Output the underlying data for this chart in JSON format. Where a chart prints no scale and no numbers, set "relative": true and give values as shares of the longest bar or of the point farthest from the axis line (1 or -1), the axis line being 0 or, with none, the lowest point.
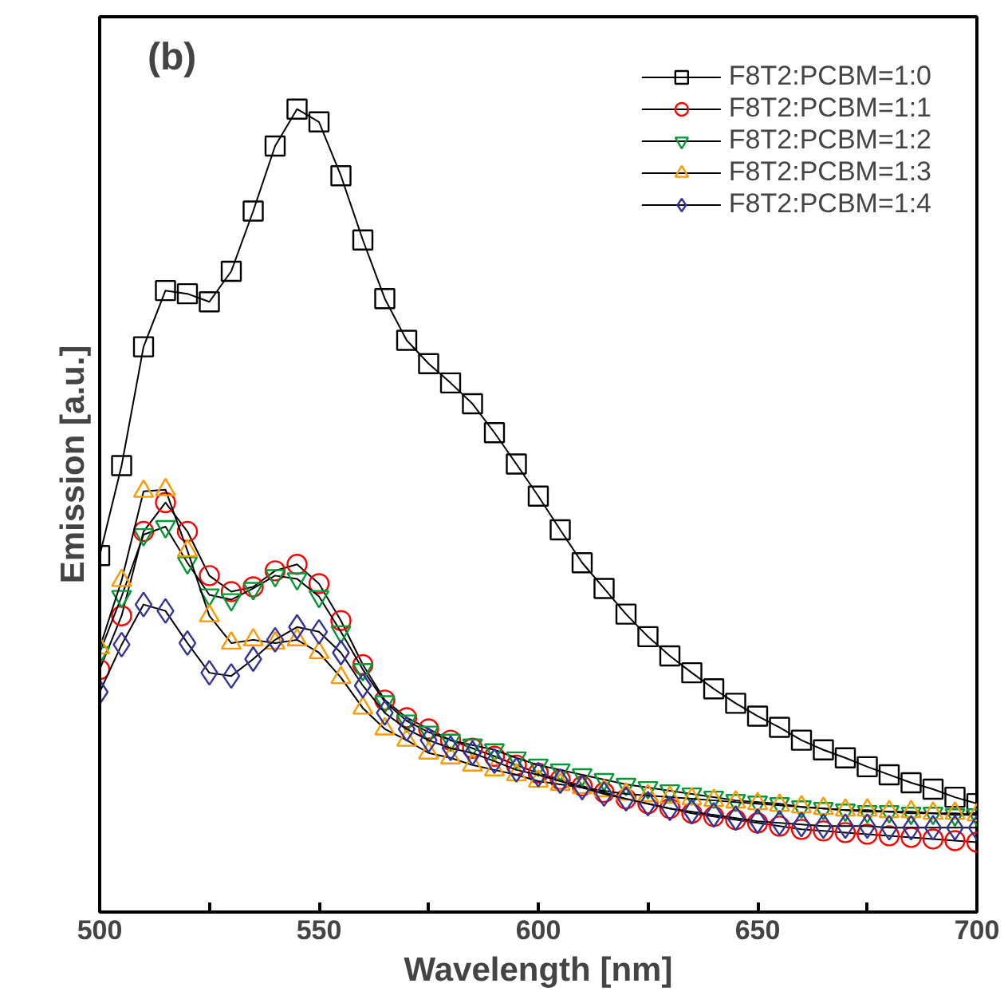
{
  "chart_data": {
    "type": "line",
    "title": "(b)",
    "xlabel": "Wavelength [nm]",
    "ylabel": "Emission [a.u.]",
    "relative": true,
    "x": [
      500,
      505,
      510,
      515,
      520,
      525,
      530,
      535,
      540,
      545,
      550,
      555,
      560,
      565,
      570,
      575,
      580,
      585,
      590,
      595,
      600,
      605,
      610,
      615,
      620,
      625,
      630,
      635,
      640,
      645,
      650,
      655,
      660,
      665,
      670,
      675,
      680,
      685,
      690,
      695,
      700
    ],
    "xlim": [
      500,
      700
    ],
    "xticks": [
      500,
      {
        "value": 525,
        "label": null
      },
      550,
      {
        "value": 575,
        "label": null
      },
      600,
      {
        "value": 625,
        "label": null
      },
      650,
      {
        "value": 675,
        "label": null
      },
      700
    ],
    "legend": "top right",
    "line_style": "solid",
    "grid": false,
    "series": [
      {
        "name": "F8T2:PCBM=1:0",
        "color": "#000000",
        "marker": "square",
        "values": [
          0.444,
          0.556,
          0.704,
          0.774,
          0.77,
          0.76,
          0.798,
          0.873,
          0.954,
          1.0,
          0.984,
          0.917,
          0.837,
          0.764,
          0.712,
          0.683,
          0.659,
          0.633,
          0.597,
          0.558,
          0.518,
          0.476,
          0.435,
          0.403,
          0.371,
          0.343,
          0.319,
          0.298,
          0.278,
          0.26,
          0.244,
          0.23,
          0.214,
          0.202,
          0.192,
          0.181,
          0.171,
          0.161,
          0.153,
          0.143,
          0.135
        ]
      },
      {
        "name": "F8T2:PCBM=1:1",
        "color": "#ff0000",
        "marker": "circle",
        "values": [
          0.302,
          0.369,
          0.474,
          0.51,
          0.474,
          0.419,
          0.399,
          0.405,
          0.425,
          0.433,
          0.409,
          0.363,
          0.308,
          0.264,
          0.242,
          0.228,
          0.214,
          0.204,
          0.194,
          0.183,
          0.173,
          0.165,
          0.157,
          0.149,
          0.141,
          0.135,
          0.129,
          0.123,
          0.119,
          0.115,
          0.111,
          0.107,
          0.103,
          0.101,
          0.099,
          0.097,
          0.095,
          0.093,
          0.091,
          0.089,
          0.087
        ]
      },
      {
        "name": "F8T2:PCBM=1:2",
        "color": "#009933",
        "marker": "triangle_down",
        "values": [
          0.323,
          0.393,
          0.47,
          0.48,
          0.435,
          0.395,
          0.389,
          0.403,
          0.419,
          0.415,
          0.393,
          0.349,
          0.302,
          0.262,
          0.238,
          0.224,
          0.214,
          0.208,
          0.202,
          0.192,
          0.183,
          0.177,
          0.171,
          0.165,
          0.159,
          0.155,
          0.151,
          0.147,
          0.143,
          0.139,
          0.137,
          0.135,
          0.131,
          0.129,
          0.127,
          0.125,
          0.125,
          0.123,
          0.123,
          0.121,
          0.121
        ]
      },
      {
        "name": "F8T2:PCBM=1:3",
        "color": "#ff9900",
        "marker": "triangle",
        "values": [
          0.329,
          0.413,
          0.524,
          0.526,
          0.45,
          0.369,
          0.335,
          0.339,
          0.335,
          0.339,
          0.323,
          0.292,
          0.254,
          0.228,
          0.214,
          0.198,
          0.192,
          0.183,
          0.177,
          0.171,
          0.163,
          0.159,
          0.155,
          0.151,
          0.147,
          0.145,
          0.143,
          0.141,
          0.139,
          0.137,
          0.135,
          0.133,
          0.131,
          0.129,
          0.127,
          0.127,
          0.125,
          0.125,
          0.123,
          0.123,
          0.121
        ]
      },
      {
        "name": "F8T2:PCBM=1:4",
        "color": "#333399",
        "marker": "diamond",
        "values": [
          0.274,
          0.333,
          0.383,
          0.375,
          0.335,
          0.298,
          0.294,
          0.315,
          0.339,
          0.355,
          0.349,
          0.323,
          0.282,
          0.248,
          0.228,
          0.214,
          0.204,
          0.198,
          0.188,
          0.177,
          0.171,
          0.163,
          0.155,
          0.147,
          0.141,
          0.135,
          0.129,
          0.125,
          0.121,
          0.117,
          0.113,
          0.111,
          0.109,
          0.107,
          0.107,
          0.107,
          0.105,
          0.105,
          0.105,
          0.105,
          0.105
        ]
      }
    ]
  }
}
